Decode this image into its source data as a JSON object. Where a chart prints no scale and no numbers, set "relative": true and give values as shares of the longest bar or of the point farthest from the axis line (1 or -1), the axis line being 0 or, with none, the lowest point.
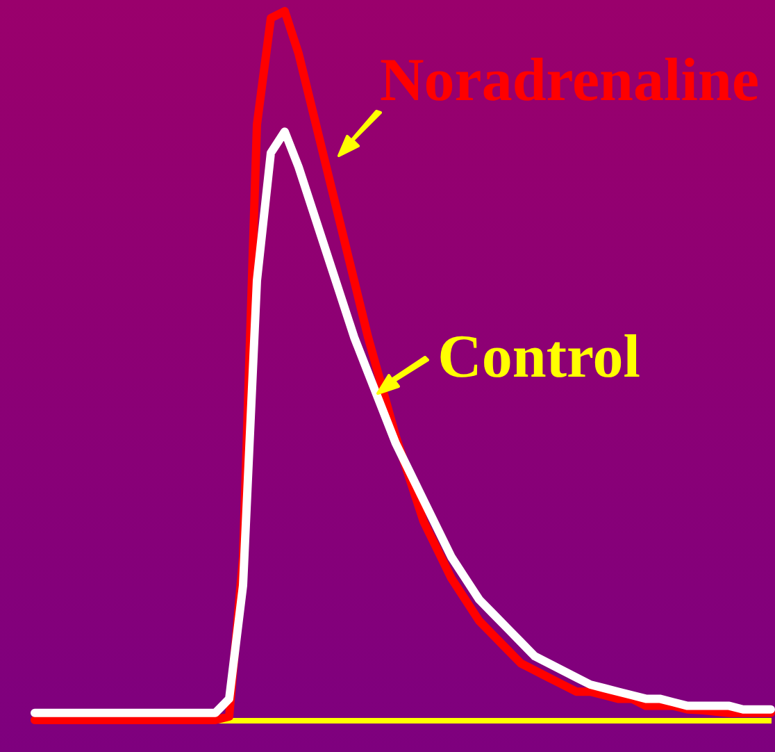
{
  "chart_data": {
    "type": "line",
    "relative": true,
    "categories": [
      null,
      null,
      null,
      null,
      null,
      null,
      null,
      null,
      null,
      null,
      null,
      null,
      null,
      null,
      null,
      null,
      null,
      null,
      null,
      null,
      null,
      null,
      null,
      null,
      null,
      null,
      null,
      null,
      null,
      null,
      null,
      null,
      null,
      null,
      null,
      null,
      null,
      null,
      null,
      null,
      null,
      null,
      null,
      null,
      null,
      null,
      null,
      null,
      null,
      null,
      null,
      null,
      null,
      null
    ],
    "series": [
      {
        "name": "Noradrenaline",
        "color": "#ff0000",
        "values": [
          0,
          0,
          0,
          0,
          0,
          0,
          0,
          0,
          0,
          0,
          0,
          0,
          0,
          0,
          0.005,
          0.23,
          0.84,
          0.99,
          1,
          0.94,
          0.86,
          0.78,
          0.7,
          0.62,
          0.54,
          0.47,
          0.4,
          0.34,
          0.28,
          0.24,
          0.2,
          0.17,
          0.14,
          0.12,
          0.1,
          0.08,
          0.07,
          0.06,
          0.05,
          0.04,
          0.04,
          0.035,
          0.03,
          0.03,
          0.02,
          0.02,
          0.02,
          0.015,
          0.014,
          0.012,
          0.01,
          0.01,
          0.01,
          0.01
        ]
      },
      {
        "name": "Control",
        "color": "#ffffff",
        "values": [
          0.01,
          0.01,
          0.01,
          0.01,
          0.01,
          0.01,
          0.01,
          0.01,
          0.01,
          0.01,
          0.01,
          0.01,
          0.01,
          0.01,
          0.03,
          0.19,
          0.62,
          0.8,
          0.83,
          0.78,
          0.72,
          0.66,
          0.6,
          0.54,
          0.49,
          0.44,
          0.39,
          0.35,
          0.31,
          0.27,
          0.23,
          0.2,
          0.17,
          0.15,
          0.13,
          0.11,
          0.09,
          0.08,
          0.07,
          0.06,
          0.05,
          0.045,
          0.04,
          0.035,
          0.03,
          0.03,
          0.025,
          0.02,
          0.02,
          0.02,
          0.02,
          0.015,
          0.015,
          0.015
        ]
      }
    ],
    "line_style": "solid"
  }
}
